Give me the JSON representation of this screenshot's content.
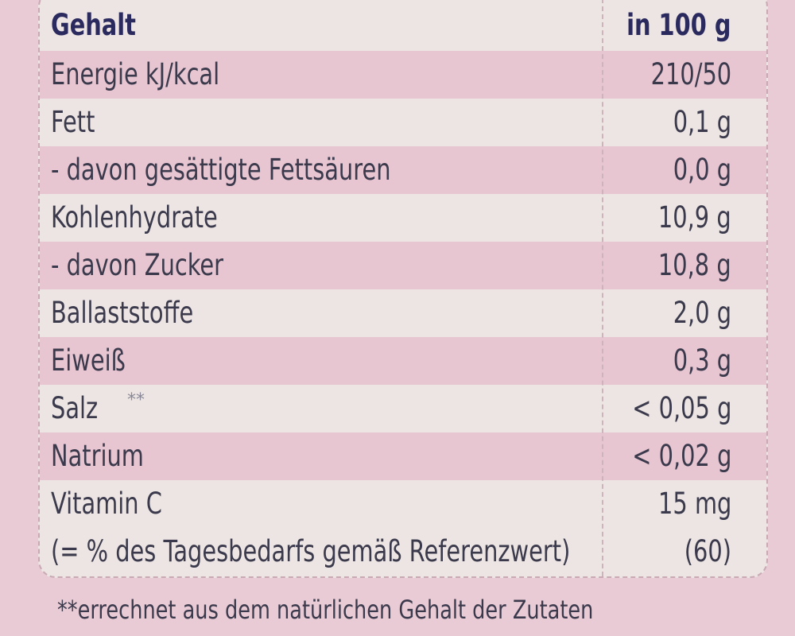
{
  "table": {
    "header": {
      "label": "Gehalt",
      "value": "in 100 g"
    },
    "rows": [
      {
        "label": "Energie kJ/kcal",
        "value": "210/50"
      },
      {
        "label": "Fett",
        "value": "0,1 g"
      },
      {
        "label": "- davon gesättigte Fettsäuren",
        "value": "0,0 g"
      },
      {
        "label": "Kohlenhydrate",
        "value": "10,9 g"
      },
      {
        "label": "- davon Zucker",
        "value": "10,8 g"
      },
      {
        "label": "Ballaststoffe",
        "value": "2,0 g"
      },
      {
        "label": "Eiweiß",
        "value": "0,3 g"
      },
      {
        "label": "Salz",
        "marker": "**",
        "value": "< 0,05 g"
      },
      {
        "label": "Natrium",
        "value": "< 0,02 g"
      },
      {
        "label": "Vitamin C",
        "value": "15 mg"
      },
      {
        "label": "(= % des Tagesbedarfs gemäß Referenzwert)",
        "value": "(60)"
      }
    ]
  },
  "footnote": "**errechnet aus dem natürlichen Gehalt der Zutaten",
  "colors": {
    "background": "#e9cbd5",
    "row_light": "#ede5e3",
    "row_pink": "#e7c5d1",
    "header_text": "#2b2a5e",
    "text": "#3b3a4c"
  }
}
